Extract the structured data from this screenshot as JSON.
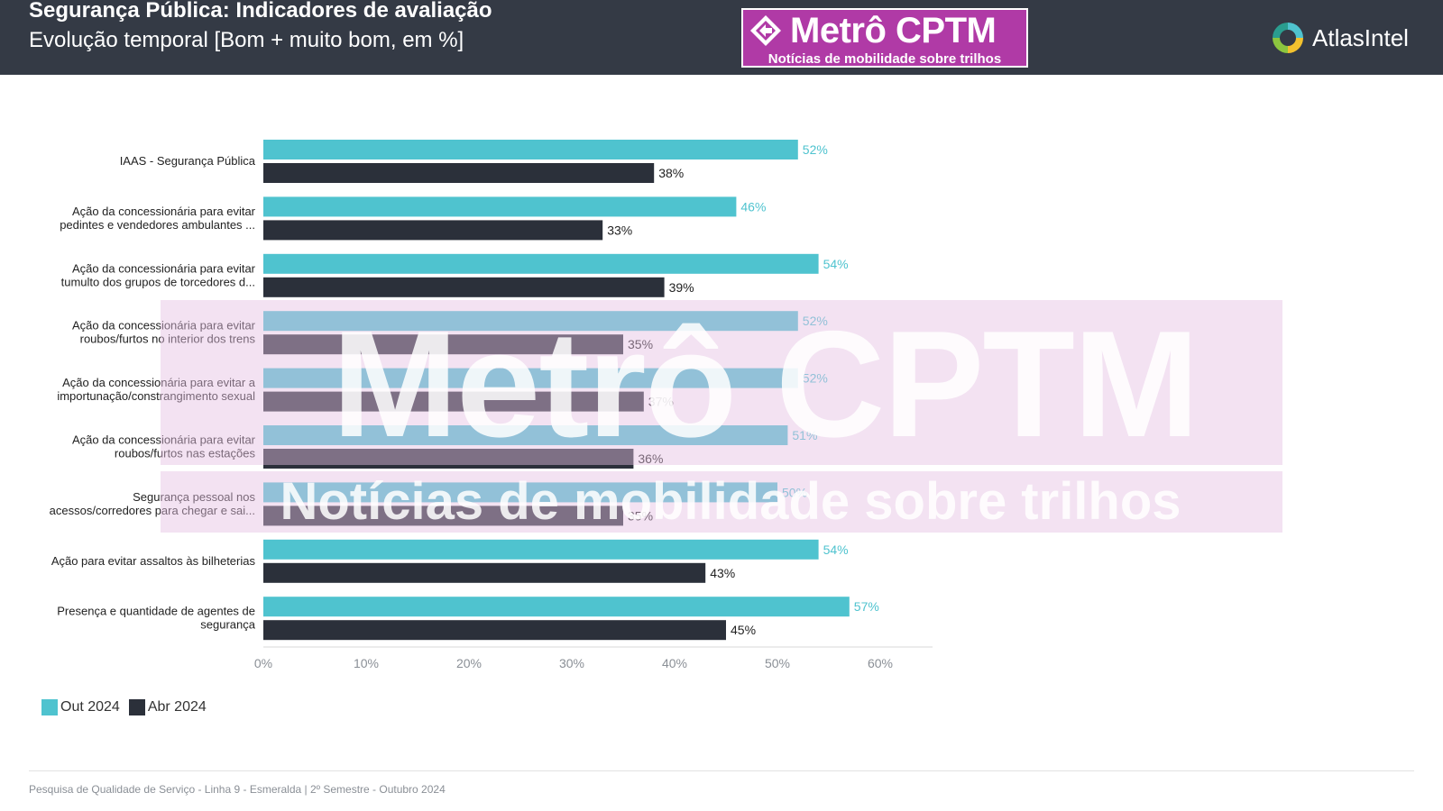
{
  "header": {
    "title": "Segurança Pública: Indicadores de avaliação",
    "subtitle": "Evolução temporal [Bom + muito bom, em %]"
  },
  "brand": {
    "name": "Metrô CPTM",
    "tagline": "Notícias de mobilidade sobre trilhos",
    "color": "#b03aa6"
  },
  "atlas": {
    "name": "AtlasIntel"
  },
  "chart_data": {
    "type": "bar",
    "orientation": "horizontal",
    "categories": [
      [
        "IAAS - Segurança Pública"
      ],
      [
        "Ação da concessionária para evitar",
        "pedintes e vendedores ambulantes ..."
      ],
      [
        "Ação da concessionária para evitar",
        "tumulto dos grupos de torcedores d..."
      ],
      [
        "Ação da concessionária para evitar",
        "roubos/furtos no interior dos trens"
      ],
      [
        "Ação da concessionária para evitar a",
        "importunação/constrangimento sexual"
      ],
      [
        "Ação da concessionária para evitar",
        "roubos/furtos nas estações"
      ],
      [
        "Segurança pessoal nos",
        "acessos/corredores para chegar e sai..."
      ],
      [
        "Ação para evitar assaltos às bilheterias"
      ],
      [
        "Presença e quantidade de agentes de",
        "segurança"
      ]
    ],
    "series": [
      {
        "name": "Out 2024",
        "color": "#4fc3cf",
        "values": [
          52,
          46,
          54,
          52,
          52,
          51,
          50,
          54,
          57
        ],
        "labels": [
          "52%",
          "46%",
          "54%",
          "52%",
          "52%",
          "51%",
          "50%",
          "54%",
          "57%"
        ]
      },
      {
        "name": "Abr 2024",
        "color": "#2b303a",
        "values": [
          38,
          33,
          39,
          35,
          37,
          36,
          35,
          43,
          45
        ],
        "labels": [
          "38%",
          "33%",
          "39%",
          "35%",
          "37%",
          "36%",
          "35%",
          "43%",
          "45%"
        ]
      }
    ],
    "xlim": [
      0,
      65
    ],
    "xticks": [
      0,
      10,
      20,
      30,
      40,
      50,
      60
    ],
    "xtick_labels": [
      "0%",
      "10%",
      "20%",
      "30%",
      "40%",
      "50%",
      "60%"
    ],
    "legend_position": "bottom-left",
    "grid": false
  },
  "legend": {
    "items": [
      {
        "label": "Out 2024",
        "color": "#4fc3cf"
      },
      {
        "label": "Abr 2024",
        "color": "#2b303a"
      }
    ]
  },
  "footer": {
    "text": "Pesquisa de Qualidade de Serviço - Linha 9 - Esmeralda | 2º Semestre - Outubro 2024"
  }
}
